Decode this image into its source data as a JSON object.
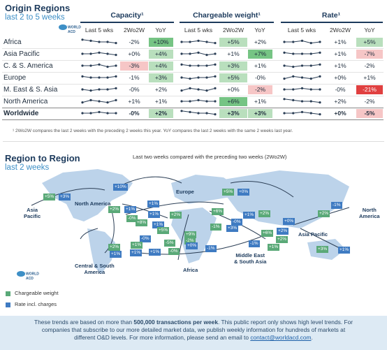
{
  "origin": {
    "title": "Origin Regions",
    "subtitle": "last 2 to 5 weeks"
  },
  "logo": {
    "line1": "WORLD",
    "line2": "ACD"
  },
  "groups": {
    "capacity": "Capacity¹",
    "chargeable": "Chargeable weight¹",
    "rate": "Rate¹"
  },
  "colheads": {
    "last5": "Last 5 wks",
    "wo2w": "2Wo2W",
    "yoy": "YoY"
  },
  "regions": [
    {
      "name": "Africa",
      "cap": [
        "-2%",
        "+10%"
      ],
      "chg": [
        "+5%",
        "+2%"
      ],
      "rate": [
        "+1%",
        "+5%"
      ]
    },
    {
      "name": "Asia Pacific",
      "cap": [
        "+0%",
        "+4%"
      ],
      "chg": [
        "+1%",
        "+7%"
      ],
      "rate": [
        "+1%",
        "-7%"
      ]
    },
    {
      "name": "C. & S. America",
      "cap": [
        "-3%",
        "+4%"
      ],
      "chg": [
        "+3%",
        "+1%"
      ],
      "rate": [
        "+1%",
        "-2%"
      ]
    },
    {
      "name": "Europe",
      "cap": [
        "-1%",
        "+3%"
      ],
      "chg": [
        "+5%",
        "-0%"
      ],
      "rate": [
        "+0%",
        "+1%"
      ]
    },
    {
      "name": "M. East & S. Asia",
      "cap": [
        "-0%",
        "+2%"
      ],
      "chg": [
        "+0%",
        "-2%"
      ],
      "rate": [
        "-0%",
        "-21%"
      ]
    },
    {
      "name": "North America",
      "cap": [
        "+1%",
        "+1%"
      ],
      "chg": [
        "+6%",
        "+1%"
      ],
      "rate": [
        "+2%",
        "-2%"
      ]
    },
    {
      "name": "Worldwide",
      "cap": [
        "-0%",
        "+2%"
      ],
      "chg": [
        "+3%",
        "+3%"
      ],
      "rate": [
        "+0%",
        "-5%"
      ]
    }
  ],
  "footnote": "¹ 2Wo2W compares the last 2 weeks with the preceding 2 weeks this year. YoY compares the last 2 weeks with the same 2 weeks last year.",
  "r2r": {
    "title": "Region to Region",
    "subtitle": "last 2 weeks",
    "map_title": "Last two weeks compared with the preceding two weeks (2Wo2W)"
  },
  "map_labels": {
    "asia_pacific_left": "Asia\nPacific",
    "north_america": "North America",
    "europe": "Europe",
    "asia_pacific": "Asia Pacific",
    "north_america_right": "North\nAmerica",
    "central_south": "Central & South\nAmerica",
    "africa": "Africa",
    "middle_east": "Middle East\n& South Asia"
  },
  "chips": [
    {
      "t": "+5%",
      "c": "g"
    },
    {
      "t": "+3%",
      "c": "b"
    },
    {
      "t": "+10%",
      "c": "b"
    },
    {
      "t": "+5%",
      "c": "g"
    },
    {
      "t": "+0%",
      "c": "b"
    },
    {
      "t": "+2%",
      "c": "g"
    },
    {
      "t": "+1%",
      "c": "b"
    },
    {
      "t": "-0%",
      "c": "g"
    },
    {
      "t": "+1%",
      "c": "b"
    },
    {
      "t": "+2%",
      "c": "g"
    },
    {
      "t": "+1%",
      "c": "b"
    },
    {
      "t": "+8%",
      "c": "g"
    },
    {
      "t": "+1%",
      "c": "b"
    },
    {
      "t": "+6%",
      "c": "g"
    },
    {
      "t": "+2%",
      "c": "g"
    },
    {
      "t": "+1%",
      "c": "b"
    },
    {
      "t": "+5%",
      "c": "g"
    },
    {
      "t": "-0%",
      "c": "b"
    },
    {
      "t": "-1%",
      "c": "g"
    },
    {
      "t": "+3%",
      "c": "b"
    },
    {
      "t": "-0%",
      "c": "b"
    },
    {
      "t": "+6%",
      "c": "g"
    },
    {
      "t": "+2%",
      "c": "b"
    },
    {
      "t": "+1%",
      "c": "g"
    },
    {
      "t": "+1%",
      "c": "b"
    },
    {
      "t": "+9%",
      "c": "g"
    },
    {
      "t": "-2%",
      "c": "g"
    },
    {
      "t": "+0%",
      "c": "b"
    },
    {
      "t": "-5%",
      "c": "g"
    },
    {
      "t": "-1%",
      "c": "b"
    },
    {
      "t": "+2%",
      "c": "g"
    },
    {
      "t": "+1%",
      "c": "b"
    },
    {
      "t": "-0%",
      "c": "g"
    },
    {
      "t": "+1%",
      "c": "b"
    },
    {
      "t": "+1%",
      "c": "g"
    },
    {
      "t": "-1%",
      "c": "b"
    },
    {
      "t": "+2%",
      "c": "g"
    },
    {
      "t": "-1%",
      "c": "b"
    },
    {
      "t": "+3%",
      "c": "g"
    },
    {
      "t": "+1%",
      "c": "b"
    },
    {
      "t": "+2%",
      "c": "g"
    },
    {
      "t": "+0%",
      "c": "b"
    }
  ],
  "legend": {
    "chargeable": "Chargeable weight",
    "rate": "Rate incl. charges"
  },
  "colors": {
    "green": "#5aa978",
    "blue": "#3f7bc2"
  },
  "bottom": {
    "p1": "These trends are based on more than ",
    "bold": "500,000 transactions per week",
    "p2": ". This public report only shows high level trends. For",
    "line2": "companies that subscribe to our more detailed market data, we publish weekly information for hundreds of markets at",
    "line3a": "different O&D levels. For more information, please send an email to ",
    "email": "contact@worldacd.com",
    "line3b": "."
  }
}
